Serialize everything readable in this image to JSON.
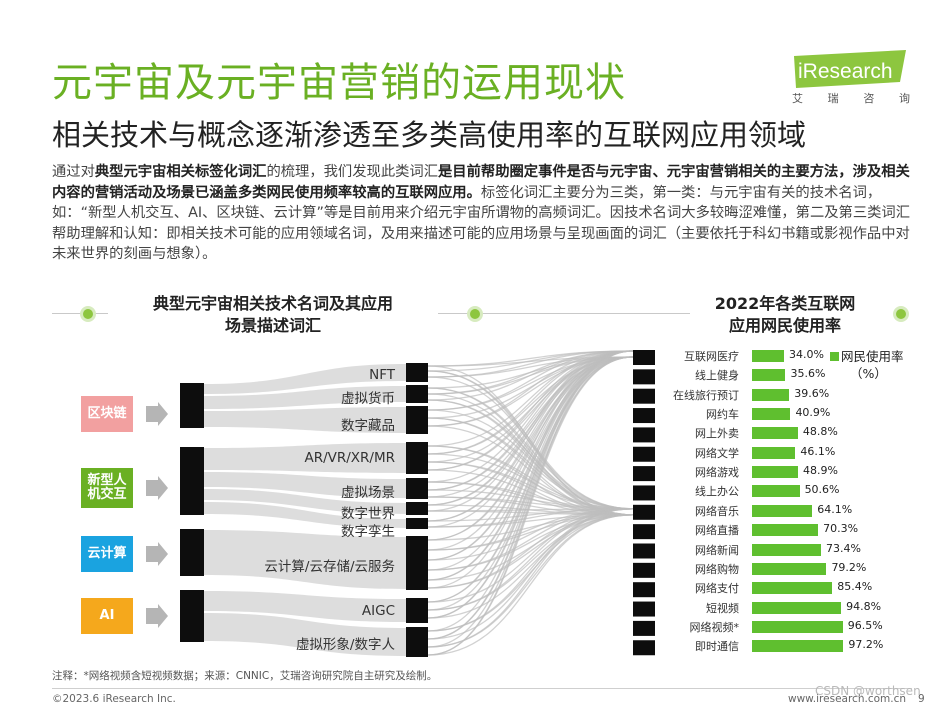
{
  "header": {
    "title": "元宇宙及元宇宙营销的运用现状",
    "subtitle": "相关技术与概念逐渐渗透至多类高使用率的互联网应用领域",
    "logo_text": "iResearch",
    "logo_tagline": [
      "艾",
      "瑞",
      "咨",
      "询"
    ]
  },
  "intro": {
    "p1": "通过对",
    "b1": "典型元宇宙相关标签化词汇",
    "p2": "的梳理，我们发现此类词汇",
    "b2": "是目前帮助圈定事件是否与元宇宙、元宇宙营销相关的主要方法，涉及相关内容的营销活动及场景已涵盖多类网民使用频率较高的互联网应用。",
    "p3": "标签化词汇主要分为三类，第一类：与元宇宙有关的技术名词，如：“新型人机交互、AI、区块链、云计算”等是目前用来介绍元宇宙所谓物的高频词汇。因技术名词大多较晦涩难懂，第二及第三类词汇帮助理解和认知：即相关技术可能的应用领域名词，及用来描述可能的应用场景与呈现画面的词汇（主要依托于科幻书籍或影视作品中对未来世界的刻画与想象）。"
  },
  "left_section": {
    "heading_line1": "典型元宇宙相关技术名词及其应用",
    "heading_line2": "场景描述词汇"
  },
  "right_section": {
    "heading_line1": "2022年各类互联网",
    "heading_line2": "应用网民使用率"
  },
  "categories": [
    {
      "label": "区块链",
      "color": "#f2a0a0"
    },
    {
      "label": "新型人机交互",
      "color": "#6ab023"
    },
    {
      "label": "云计算",
      "color": "#1aa3e0"
    },
    {
      "label": "AI",
      "color": "#f5a81c"
    }
  ],
  "tech_terms": [
    "NFT",
    "虚拟货币",
    "数字藏品",
    "AR/VR/XR/MR",
    "虚拟场景",
    "数字世界",
    "数字孪生",
    "云计算/云存储/云服务",
    "AIGC",
    "虚拟形象/数字人"
  ],
  "chart_data": {
    "type": "bar",
    "title": "2022年各类互联网应用网民使用率",
    "legend": "网民使用率（%）",
    "legend_line1": "网民使用率",
    "legend_line2": "（%）",
    "unit": "%",
    "orientation": "horizontal",
    "categories": [
      "互联网医疗",
      "线上健身",
      "在线旅行预订",
      "网约车",
      "网上外卖",
      "网络文学",
      "网络游戏",
      "线上办公",
      "网络音乐",
      "网络直播",
      "网络新闻",
      "网络购物",
      "网络支付",
      "短视频",
      "网络视频*",
      "即时通信"
    ],
    "values": [
      34.0,
      35.6,
      39.6,
      40.9,
      48.8,
      46.1,
      48.9,
      50.6,
      64.1,
      70.3,
      73.4,
      79.2,
      85.4,
      94.8,
      96.5,
      97.2
    ],
    "labels": [
      "34.0%",
      "35.6%",
      "39.6%",
      "40.9%",
      "48.8%",
      "46.1%",
      "48.9%",
      "50.6%",
      "64.1%",
      "70.3%",
      "73.4%",
      "79.2%",
      "85.4%",
      "94.8%",
      "96.5%",
      "97.2%"
    ],
    "xlim": [
      0,
      100
    ],
    "color": "#5fbf2f"
  },
  "footer": {
    "note": "注释：*网络视频含短视频数据；来源：CNNIC，艾瑞咨询研究院自主研究及绘制。",
    "copyright": "©2023.6 iResearch Inc.",
    "site": "www.iresearch.com.cn",
    "page": "9",
    "watermark": "CSDN @worthsen"
  }
}
